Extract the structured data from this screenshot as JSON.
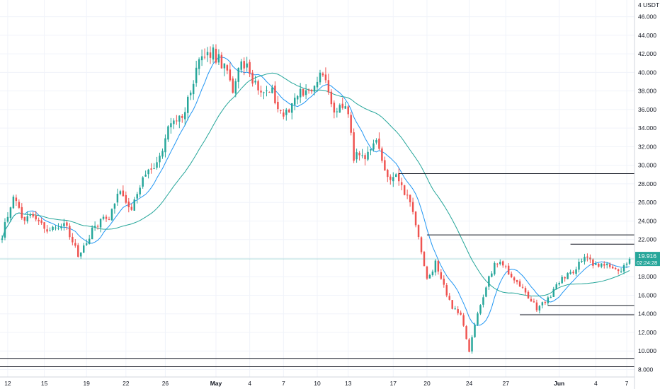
{
  "chart_data": {
    "type": "candlestick",
    "currency_label": "USDT",
    "currency_prefix": "4",
    "y_ticks": [
      8.0,
      10.0,
      12.0,
      14.0,
      16.0,
      18.0,
      20.0,
      22.0,
      24.0,
      26.0,
      28.0,
      30.0,
      32.0,
      34.0,
      36.0,
      38.0,
      40.0,
      42.0,
      44.0,
      46.0
    ],
    "y_tick_labels": [
      "8.000",
      "10.000",
      "12.000",
      "14.000",
      "16.000",
      "18.000",
      "20.000",
      "22.000",
      "24.000",
      "26.000",
      "28.000",
      "30.000",
      "32.000",
      "34.000",
      "36.000",
      "38.000",
      "40.000",
      "42.000",
      "44.000",
      "46.000"
    ],
    "ylim": [
      7.2,
      47.8
    ],
    "x_ticks": [
      {
        "label": "12",
        "bold": false
      },
      {
        "label": "15",
        "bold": false
      },
      {
        "label": "19",
        "bold": false
      },
      {
        "label": "22",
        "bold": false
      },
      {
        "label": "26",
        "bold": false
      },
      {
        "label": "May",
        "bold": true
      },
      {
        "label": "4",
        "bold": false
      },
      {
        "label": "7",
        "bold": false
      },
      {
        "label": "10",
        "bold": false
      },
      {
        "label": "13",
        "bold": false
      },
      {
        "label": "17",
        "bold": false
      },
      {
        "label": "20",
        "bold": false
      },
      {
        "label": "24",
        "bold": false
      },
      {
        "label": "27",
        "bold": false
      },
      {
        "label": "Jun",
        "bold": true
      },
      {
        "label": "4",
        "bold": false
      },
      {
        "label": "7",
        "bold": false
      }
    ],
    "x_tick_bar_index": [
      2,
      15,
      30,
      44,
      58,
      76,
      88,
      100,
      112,
      123,
      139,
      151,
      166,
      179,
      198,
      211,
      222
    ],
    "anchors": [
      [
        0,
        22.5
      ],
      [
        4,
        26.8
      ],
      [
        7,
        24.2
      ],
      [
        12,
        24.6
      ],
      [
        16,
        23.0
      ],
      [
        22,
        23.8
      ],
      [
        27,
        20.3
      ],
      [
        33,
        23.5
      ],
      [
        38,
        24.6
      ],
      [
        42,
        27.5
      ],
      [
        46,
        25.2
      ],
      [
        50,
        28.4
      ],
      [
        55,
        30.2
      ],
      [
        60,
        34.5
      ],
      [
        65,
        35.8
      ],
      [
        70,
        41.5
      ],
      [
        75,
        42.0
      ],
      [
        79,
        40.6
      ],
      [
        82,
        38.2
      ],
      [
        85,
        40.9
      ],
      [
        88,
        40.2
      ],
      [
        91,
        38.0
      ],
      [
        95,
        38.4
      ],
      [
        100,
        35.4
      ],
      [
        105,
        37.7
      ],
      [
        110,
        38.2
      ],
      [
        114,
        39.8
      ],
      [
        118,
        35.6
      ],
      [
        122,
        37.0
      ],
      [
        125,
        31.0
      ],
      [
        129,
        30.6
      ],
      [
        133,
        32.2
      ],
      [
        137,
        29.0
      ],
      [
        141,
        28.4
      ],
      [
        145,
        26.0
      ],
      [
        148,
        22.6
      ],
      [
        151,
        17.5
      ],
      [
        154,
        19.5
      ],
      [
        157,
        17.0
      ],
      [
        160,
        14.6
      ],
      [
        163,
        13.8
      ],
      [
        166,
        10.0
      ],
      [
        169,
        14.0
      ],
      [
        172,
        17.0
      ],
      [
        175,
        19.5
      ],
      [
        178,
        19.5
      ],
      [
        181,
        17.8
      ],
      [
        184,
        17.1
      ],
      [
        187,
        15.8
      ],
      [
        190,
        14.6
      ],
      [
        193,
        15.4
      ],
      [
        196,
        16.4
      ],
      [
        199,
        17.9
      ],
      [
        202,
        18.3
      ],
      [
        205,
        19.4
      ],
      [
        208,
        20.2
      ],
      [
        211,
        19.1
      ],
      [
        214,
        19.4
      ],
      [
        217,
        18.8
      ],
      [
        220,
        18.5
      ],
      [
        223,
        19.9
      ]
    ],
    "bar_count": 224,
    "ma_periods": [
      9,
      30
    ],
    "ma_colors": [
      "#2196f3",
      "#26a69a"
    ],
    "current_price": {
      "value": 19.916,
      "label": "19.916",
      "countdown": "02:24:28",
      "color": "#26a69a"
    },
    "horizontal_levels": [
      {
        "price": 29.1,
        "from_bar": 141
      },
      {
        "price": 22.5,
        "from_bar": 151
      },
      {
        "price": 21.5,
        "from_bar": 202
      },
      {
        "price": 14.9,
        "from_bar": 194
      },
      {
        "price": 13.9,
        "from_bar": 184
      },
      {
        "price": 9.2,
        "from_bar": 0
      },
      {
        "price": 8.3,
        "from_bar": 0
      }
    ],
    "colors": {
      "up": "#26a69a",
      "down": "#ef5350",
      "level": "#131722",
      "grid": "#f0f3fa",
      "axis_text": "#131722"
    }
  }
}
